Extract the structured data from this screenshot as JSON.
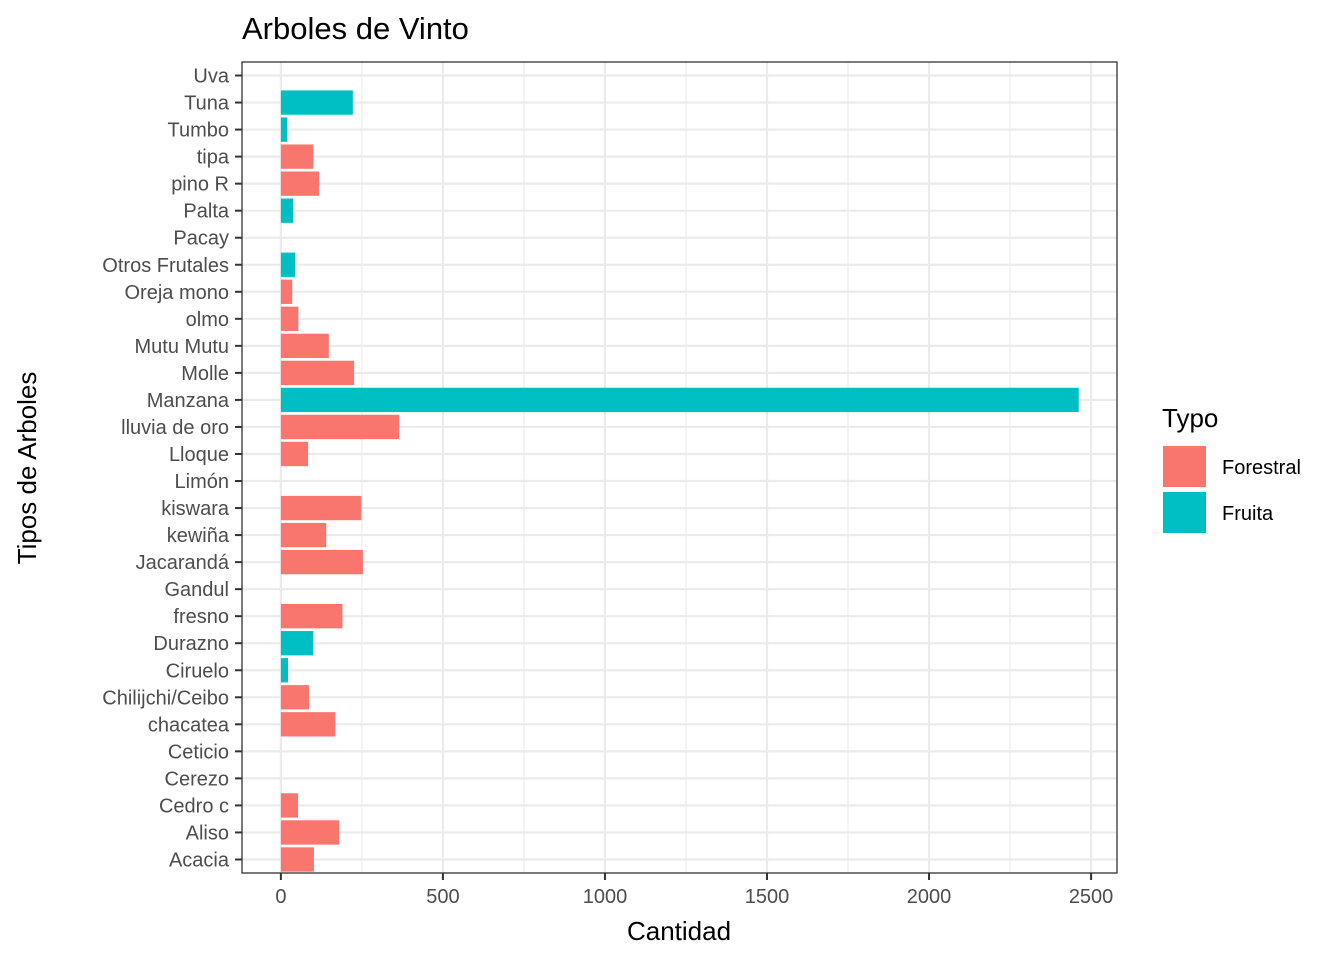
{
  "chart_data": {
    "type": "bar",
    "orientation": "horizontal",
    "title": "Arboles de Vinto",
    "xlabel": "Cantidad",
    "ylabel": "Tipos de Arboles",
    "xlim": [
      -120,
      2580
    ],
    "xticks": [
      0,
      500,
      1000,
      1500,
      2000,
      2500
    ],
    "grid": true,
    "legend": {
      "title": "Typo",
      "position": "right",
      "entries": [
        {
          "name": "Forestral",
          "color": "#F8766D"
        },
        {
          "name": "Fruita",
          "color": "#00BFC4"
        }
      ]
    },
    "categories": [
      "Acacia",
      "Aliso",
      "Cedro c",
      "Cerezo",
      "Ceticio",
      "chacatea",
      "Chilijchi/Ceibo",
      "Ciruelo",
      "Durazno",
      "fresno",
      "Gandul",
      "Jacarandá",
      "kewiña",
      "kiswara",
      "Limón",
      "Lloque",
      "lluvia de oro",
      "Manzana",
      "Molle",
      "Mutu Mutu",
      "olmo",
      "Oreja mono",
      "Otros Frutales",
      "Pacay",
      "Palta",
      "pino R",
      "tipa",
      "Tumbo",
      "Tuna",
      "Uva"
    ],
    "values": [
      102,
      180,
      53,
      0,
      0,
      168,
      87,
      22,
      100,
      190,
      0,
      253,
      140,
      248,
      0,
      84,
      365,
      2462,
      226,
      148,
      54,
      35,
      44,
      0,
      38,
      118,
      100,
      20,
      222,
      0
    ],
    "types": [
      "Forestral",
      "Forestral",
      "Forestral",
      "Fruita",
      "Forestral",
      "Forestral",
      "Forestral",
      "Fruita",
      "Fruita",
      "Forestral",
      "Fruita",
      "Forestral",
      "Forestral",
      "Forestral",
      "Fruita",
      "Forestral",
      "Forestral",
      "Fruita",
      "Forestral",
      "Forestral",
      "Forestral",
      "Forestral",
      "Fruita",
      "Fruita",
      "Fruita",
      "Forestral",
      "Forestral",
      "Fruita",
      "Fruita",
      "Fruita"
    ]
  }
}
